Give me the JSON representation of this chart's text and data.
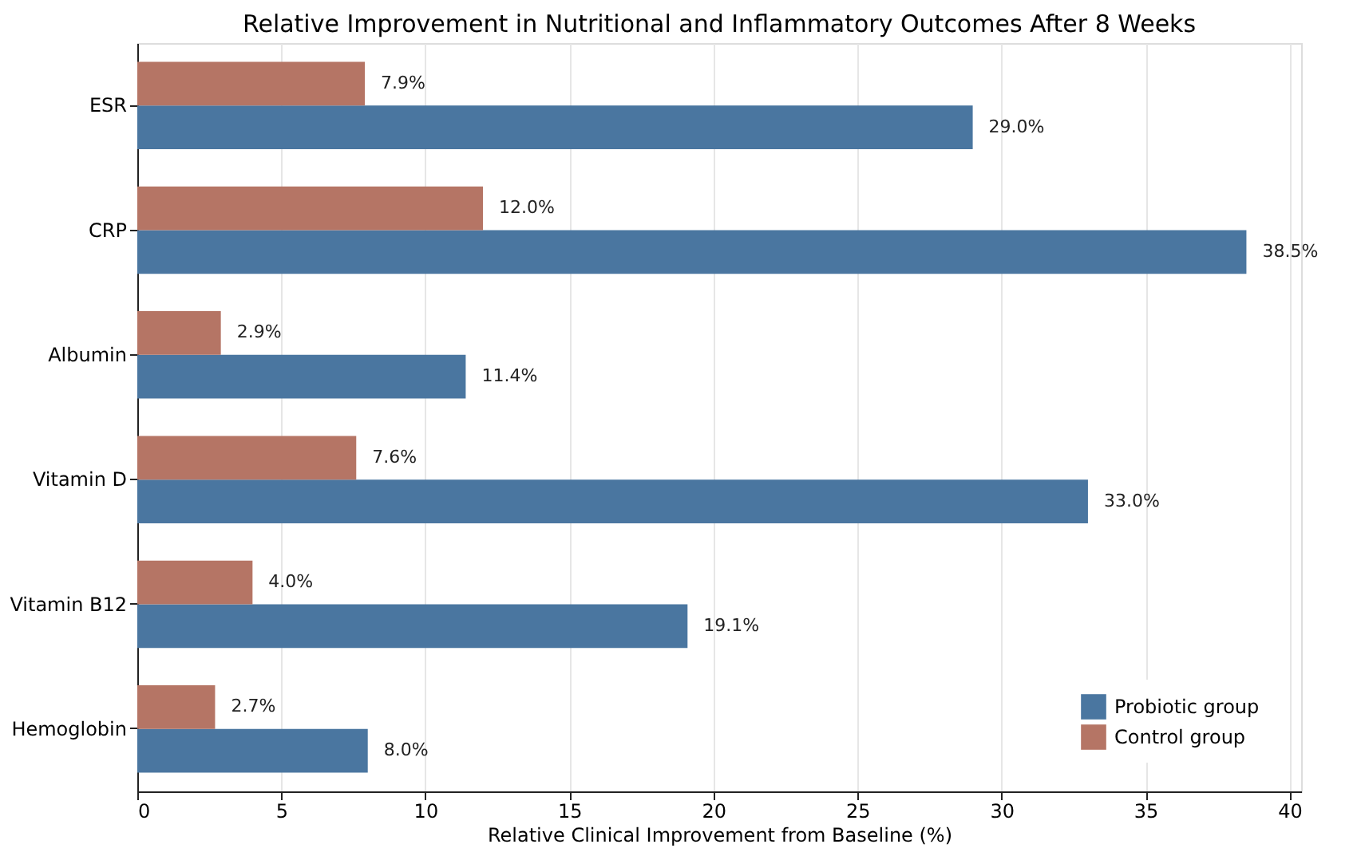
{
  "chart_data": {
    "type": "bar",
    "orientation": "horizontal",
    "title": "Relative Improvement in Nutritional and Inflammatory Outcomes After 8 Weeks",
    "xlabel": "Relative Clinical Improvement from Baseline (%)",
    "categories": [
      "ESR",
      "CRP",
      "Albumin",
      "Vitamin D",
      "Vitamin B12",
      "Hemoglobin"
    ],
    "series": [
      {
        "name": "Probiotic group",
        "color": "#4a76a0",
        "values": [
          29.0,
          38.5,
          11.4,
          33.0,
          19.1,
          8.0
        ],
        "value_labels": [
          "29.0%",
          "38.5%",
          "11.4%",
          "33.0%",
          "19.1%",
          "8.0%"
        ]
      },
      {
        "name": "Control group",
        "color": "#b57565",
        "values": [
          7.9,
          12.0,
          2.9,
          7.6,
          4.0,
          2.7
        ],
        "value_labels": [
          "7.9%",
          "12.0%",
          "2.9%",
          "7.6%",
          "4.0%",
          "2.7%"
        ]
      }
    ],
    "xlim": [
      0,
      40.4
    ],
    "xticks": [
      0,
      5,
      10,
      15,
      20,
      25,
      30,
      35,
      40
    ],
    "grid": "x",
    "legend": "bottom right"
  }
}
